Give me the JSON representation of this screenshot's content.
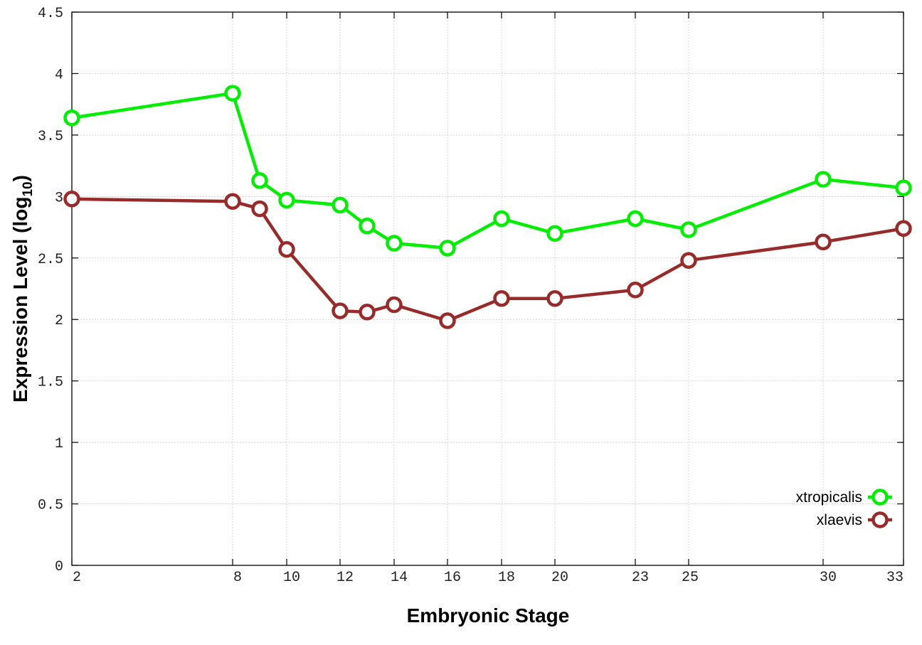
{
  "chart_data": {
    "type": "line",
    "title": "",
    "xlabel": "Embryonic Stage",
    "ylabel": {
      "main": "Expression Level (log",
      "sub": "10",
      "close": ")"
    },
    "x_ticks": [
      "2",
      "8",
      "10",
      "12",
      "14",
      "16",
      "18",
      "20",
      "23",
      "25",
      "30",
      "33"
    ],
    "y_ticks": [
      "0",
      "0.5",
      "1",
      "1.5",
      "2",
      "2.5",
      "3",
      "3.5",
      "4",
      "4.5"
    ],
    "ylim": [
      0,
      4.5
    ],
    "grid": true,
    "legend_position": "bottom-right",
    "series": [
      {
        "name": "xtropicalis",
        "color": "#00ee00",
        "points": [
          {
            "x": "2",
            "y": 3.64
          },
          {
            "x": "8",
            "y": 3.84
          },
          {
            "x": "9",
            "y": 3.13
          },
          {
            "x": "10",
            "y": 2.97
          },
          {
            "x": "12",
            "y": 2.93
          },
          {
            "x": "13",
            "y": 2.76
          },
          {
            "x": "14",
            "y": 2.62
          },
          {
            "x": "16",
            "y": 2.58
          },
          {
            "x": "18",
            "y": 2.82
          },
          {
            "x": "20",
            "y": 2.7
          },
          {
            "x": "23",
            "y": 2.82
          },
          {
            "x": "25",
            "y": 2.73
          },
          {
            "x": "30",
            "y": 3.14
          },
          {
            "x": "33",
            "y": 3.07
          }
        ]
      },
      {
        "name": "xlaevis",
        "color": "#992a2a",
        "points": [
          {
            "x": "2",
            "y": 2.98
          },
          {
            "x": "8",
            "y": 2.96
          },
          {
            "x": "9",
            "y": 2.9
          },
          {
            "x": "10",
            "y": 2.57
          },
          {
            "x": "12",
            "y": 2.07
          },
          {
            "x": "13",
            "y": 2.06
          },
          {
            "x": "14",
            "y": 2.12
          },
          {
            "x": "16",
            "y": 1.99
          },
          {
            "x": "18",
            "y": 2.17
          },
          {
            "x": "20",
            "y": 2.17
          },
          {
            "x": "23",
            "y": 2.24
          },
          {
            "x": "25",
            "y": 2.48
          },
          {
            "x": "30",
            "y": 2.63
          },
          {
            "x": "33",
            "y": 2.74
          }
        ]
      }
    ]
  }
}
